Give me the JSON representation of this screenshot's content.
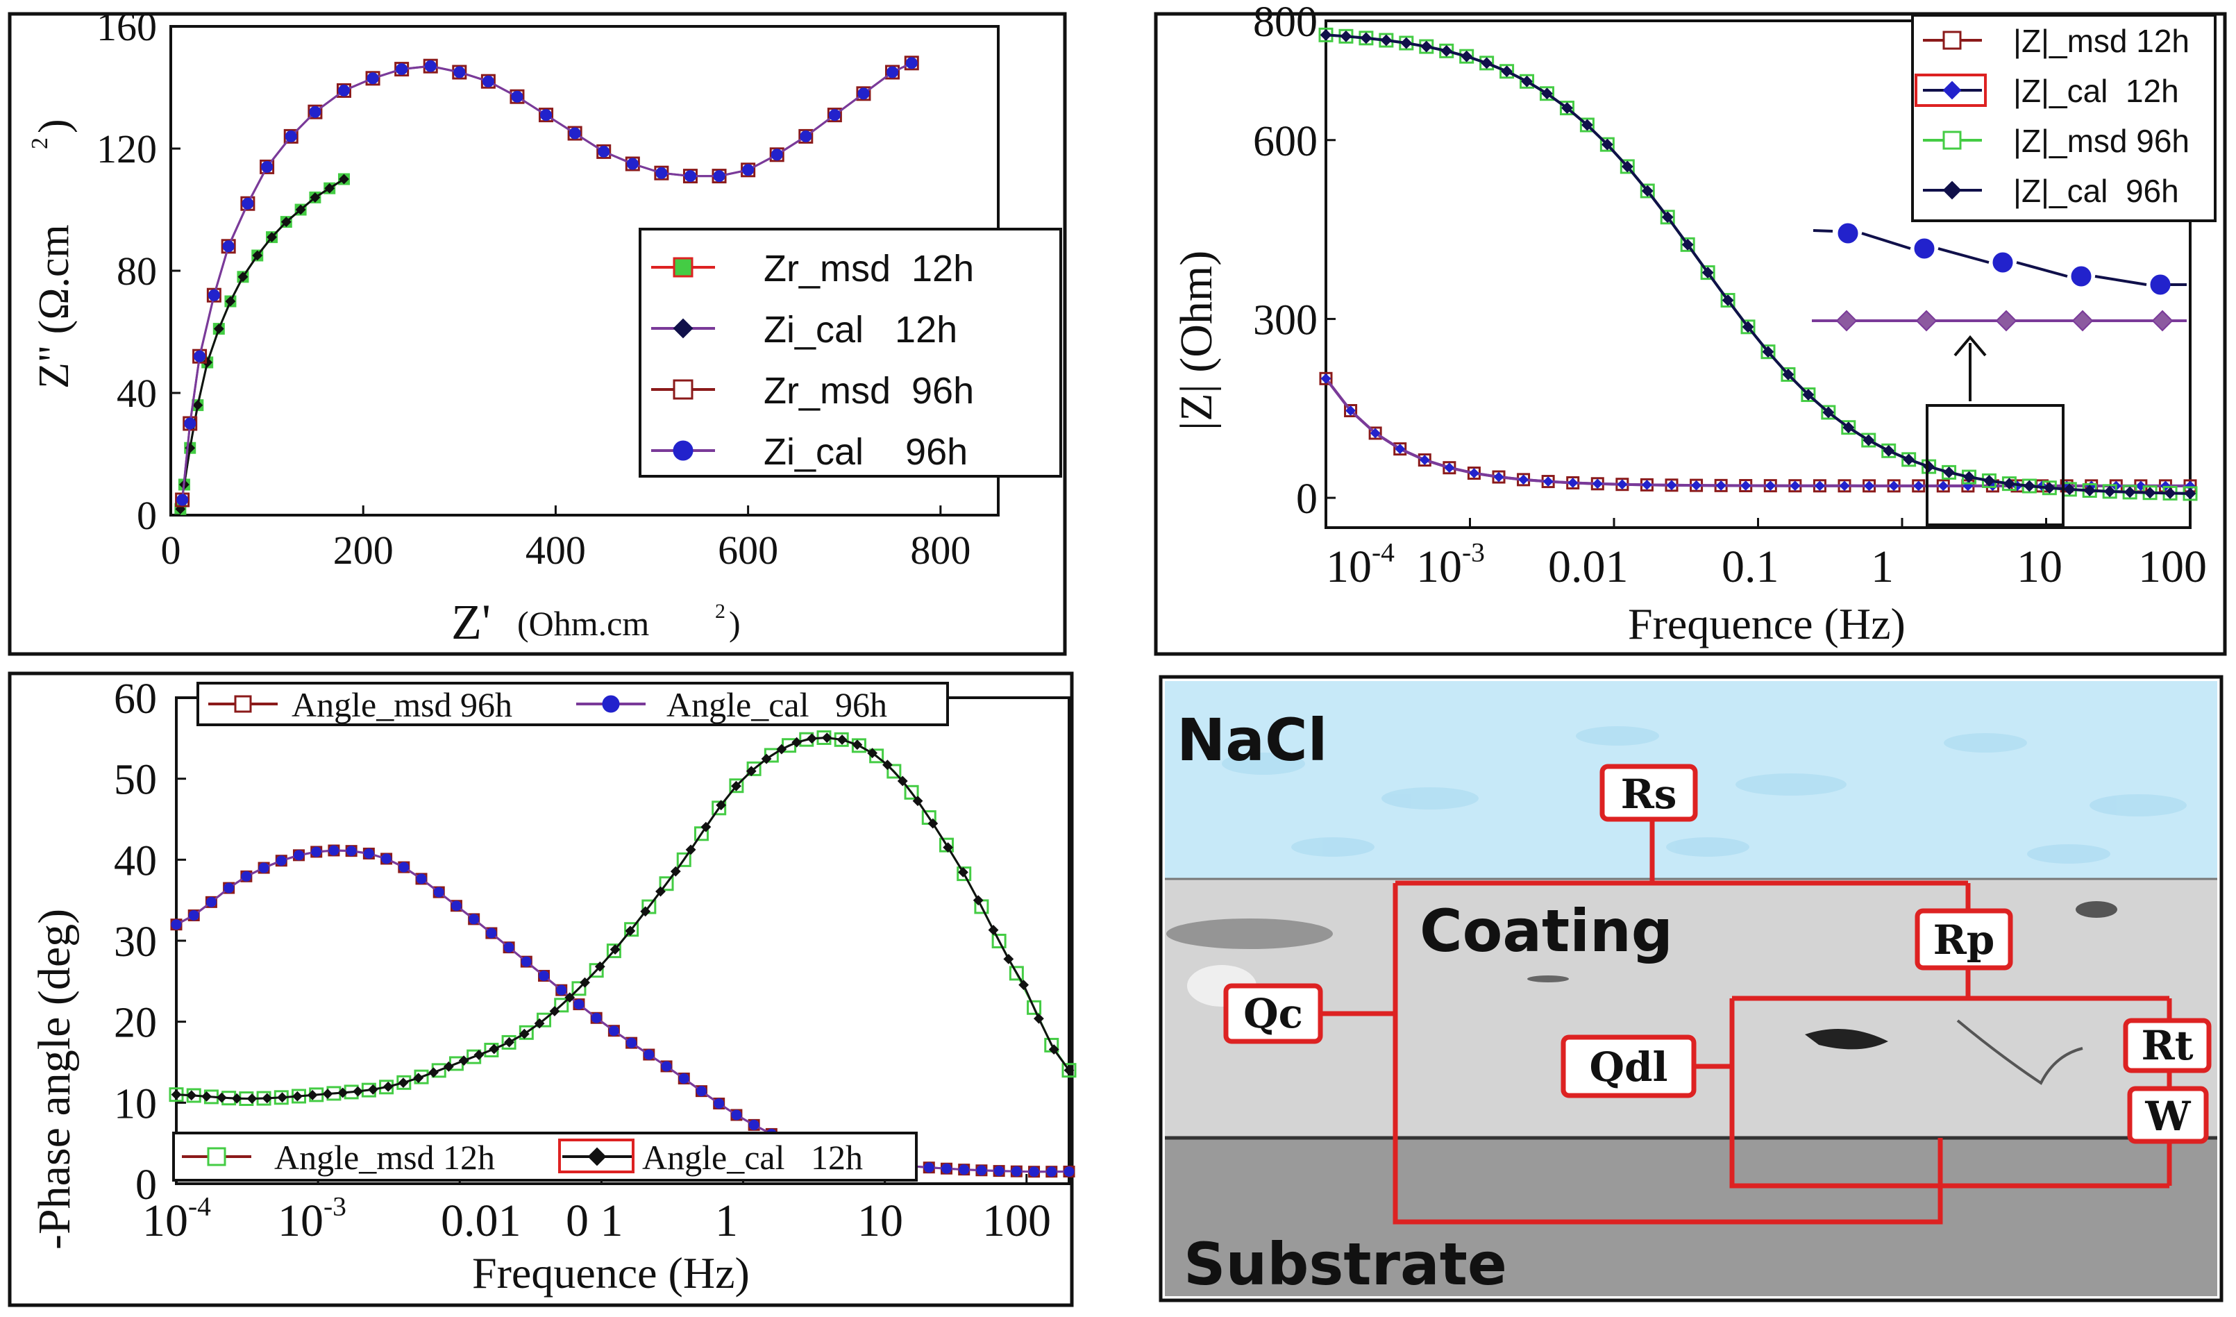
{
  "colors": {
    "green": "#44cc44",
    "black": "#111111",
    "brown": "#8b1a1a",
    "blue": "#2222cc",
    "purple": "#7a3a99",
    "navy": "#10104a",
    "red": "#dd2222",
    "water": "#bfe6f7",
    "coating": "#d0d0d0",
    "substrate": "#9a9a9a",
    "substrate_label": "#f0f050"
  },
  "chart_data": [
    {
      "id": "nyquist",
      "type": "scatter",
      "xlabel": "Z'",
      "xlabel_unit": "(Ohm.cm",
      "xlabel_sup": "2",
      "xlabel_close": ")",
      "ylabel": "Z\" (Ω.cm",
      "ylabel_sup": "2",
      "ylabel_close": ")",
      "xlim": [
        0,
        860
      ],
      "ylim": [
        0,
        160
      ],
      "xticks": [
        "0",
        "200",
        "400",
        "600",
        "800"
      ],
      "yticks": [
        "0",
        "40",
        "80",
        "120",
        "160"
      ],
      "legend_position": "right",
      "legend": [
        "Zr_msd  12h",
        "Zi_cal   12h",
        "Zr_msd  96h",
        "Zi_cal    96h"
      ],
      "series": [
        {
          "name": "Zr_msd  12h",
          "x": [
            10,
            14,
            20,
            28,
            38,
            50,
            62,
            75,
            90,
            105,
            120,
            135,
            150,
            165,
            180
          ],
          "y": [
            2,
            10,
            22,
            36,
            50,
            61,
            70,
            78,
            85,
            91,
            96,
            100,
            104,
            107,
            110
          ]
        },
        {
          "name": "Zi_cal   12h",
          "x": [
            10,
            14,
            20,
            28,
            38,
            50,
            62,
            75,
            90,
            105,
            120,
            135,
            150,
            165,
            180
          ],
          "y": [
            2,
            10,
            22,
            36,
            50,
            61,
            70,
            78,
            85,
            91,
            96,
            100,
            104,
            107,
            110
          ]
        },
        {
          "name": "Zr_msd  96h",
          "x": [
            12,
            20,
            30,
            45,
            60,
            80,
            100,
            125,
            150,
            180,
            210,
            240,
            270,
            300,
            330,
            360,
            390,
            420,
            450,
            480,
            510,
            540,
            570,
            600,
            630,
            660,
            690,
            720,
            750,
            770
          ],
          "y": [
            5,
            30,
            52,
            72,
            88,
            102,
            114,
            124,
            132,
            139,
            143,
            146,
            147,
            145,
            142,
            137,
            131,
            125,
            119,
            115,
            112,
            111,
            111,
            113,
            118,
            124,
            131,
            138,
            145,
            148
          ]
        },
        {
          "name": "Zi_cal    96h",
          "x": [
            12,
            20,
            30,
            45,
            60,
            80,
            100,
            125,
            150,
            180,
            210,
            240,
            270,
            300,
            330,
            360,
            390,
            420,
            450,
            480,
            510,
            540,
            570,
            600,
            630,
            660,
            690,
            720,
            750,
            770
          ],
          "y": [
            5,
            30,
            52,
            72,
            88,
            102,
            114,
            124,
            132,
            139,
            143,
            146,
            147,
            145,
            142,
            137,
            131,
            125,
            119,
            115,
            112,
            111,
            111,
            113,
            118,
            124,
            131,
            138,
            145,
            148
          ]
        }
      ]
    },
    {
      "id": "bode_mag",
      "type": "line",
      "xscale": "log",
      "xlabel": "Frequence (Hz)",
      "ylabel": "|Z| (Ohm)",
      "xlim": [
        0.0001,
        100
      ],
      "ylim": [
        -50,
        800
      ],
      "xticks": [
        "10",
        "10",
        "0.01",
        "0.1",
        "1",
        "10",
        "100"
      ],
      "xticks_sup": [
        "-4",
        "-3",
        "",
        "",
        "",
        "",
        ""
      ],
      "yticks": [
        "0",
        "300",
        "600",
        "800"
      ],
      "ytick_values": [
        0,
        300,
        600,
        800
      ],
      "legend_position": "top-right",
      "legend": [
        "|Z|_msd 12h",
        "|Z|_cal  12h",
        "|Z|_msd 96h",
        "|Z|_cal  96h"
      ],
      "series": [
        {
          "name": "|Z|_msd 12h",
          "points": 36,
          "log_x_start": -4,
          "log_x_end": 2,
          "curve": "z12"
        },
        {
          "name": "|Z|_cal  12h",
          "points": 36,
          "log_x_start": -4,
          "log_x_end": 2,
          "curve": "z12"
        },
        {
          "name": "|Z|_msd 96h",
          "points": 44,
          "log_x_start": -4,
          "log_x_end": 2,
          "curve": "z96"
        },
        {
          "name": "|Z|_cal  96h",
          "points": 44,
          "log_x_start": -4,
          "log_x_end": 2,
          "curve": "z96"
        }
      ],
      "inset": {
        "series": [
          {
            "name": "|Z|_cal  96h",
            "values": [
              450,
              430,
              410,
              390,
              375,
              360
            ]
          },
          {
            "name": "|Z|_msd 12h",
            "values": [
              300,
              300,
              300,
              300,
              300,
              300
            ]
          }
        ]
      }
    },
    {
      "id": "bode_phase",
      "type": "line",
      "xscale": "log",
      "xlabel": "Frequence (Hz)",
      "ylabel": "-Phase angle (deg)",
      "xlim": [
        0.0001,
        200
      ],
      "ylim": [
        0,
        60
      ],
      "xticks": [
        "10",
        "10",
        "0.01",
        "0 1",
        "1",
        "10",
        "100"
      ],
      "xticks_sup": [
        "-4",
        "-3",
        "",
        "",
        "",
        "",
        ""
      ],
      "yticks": [
        "0",
        "10",
        "20",
        "30",
        "40",
        "50",
        "60"
      ],
      "legend_position": "top and bottom",
      "legend_top": [
        "Angle_msd 96h",
        "Angle_cal   96h"
      ],
      "legend_bottom": [
        "Angle_msd 12h",
        "Angle_cal   12h"
      ],
      "series": [
        {
          "name": "Angle_msd 96h",
          "log_x": [
            -4,
            -3.5,
            -3,
            -2.5,
            -2,
            -1.5,
            -1,
            -0.5,
            0,
            0.5,
            1,
            1.5,
            2,
            2.3
          ],
          "y": [
            32,
            38,
            41,
            40,
            34,
            27,
            20,
            14,
            8,
            4,
            2.5,
            1.8,
            1.5,
            1.5
          ]
        },
        {
          "name": "Angle_cal   96h",
          "log_x": [
            -4,
            -3.5,
            -3,
            -2.5,
            -2,
            -1.5,
            -1,
            -0.5,
            0,
            0.5,
            1,
            1.5,
            2,
            2.3
          ],
          "y": [
            32,
            38,
            41,
            40,
            34,
            27,
            20,
            14,
            8,
            4,
            2.5,
            1.8,
            1.5,
            1.5
          ]
        },
        {
          "name": "Angle_msd 12h",
          "log_x": [
            -4,
            -3.5,
            -3,
            -2.5,
            -2,
            -1.5,
            -1,
            -0.5,
            0,
            0.5,
            1,
            1.5,
            2,
            2.3
          ],
          "y": [
            11,
            10.5,
            11,
            12,
            15,
            19,
            27,
            38,
            50,
            55,
            52,
            40,
            24,
            14
          ]
        },
        {
          "name": "Angle_cal   12h",
          "log_x": [
            -4,
            -3.5,
            -3,
            -2.5,
            -2,
            -1.5,
            -1,
            -0.5,
            0,
            0.5,
            1,
            1.5,
            2,
            2.3
          ],
          "y": [
            11,
            10.5,
            11,
            12,
            15,
            19,
            27,
            38,
            50,
            55,
            52,
            40,
            24,
            14
          ]
        }
      ]
    }
  ],
  "diagram": {
    "nacl": "NaCl",
    "coating": "Coating",
    "substrate": "Substrate",
    "labels": {
      "rs": "Rs",
      "rp": "Rp",
      "qc": "Qc",
      "qdl": "Qdl",
      "rt": "Rt",
      "w": "W"
    }
  }
}
